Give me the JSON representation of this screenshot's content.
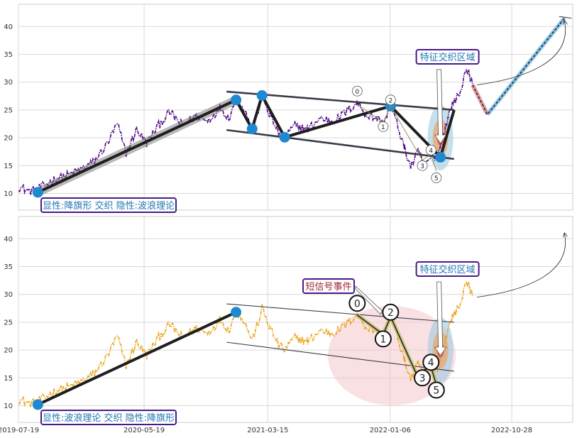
{
  "chart_data": [
    {
      "type": "line",
      "xlim": [
        "2019-07-19",
        "2023-03-25"
      ],
      "ylim": [
        7,
        44
      ],
      "y_ticks": [
        10,
        15,
        20,
        25,
        30,
        35,
        40
      ],
      "grid": true,
      "price_color": "#4b0082",
      "series": [
        {
          "values": [
            [
              "2019-07-19",
              11.2
            ],
            [
              "2019-08-15",
              10.4
            ],
            [
              "2019-09-10",
              11.0
            ],
            [
              "2019-10-15",
              12.6
            ],
            [
              "2019-11-20",
              13.4
            ],
            [
              "2019-12-20",
              14.4
            ],
            [
              "2020-01-20",
              15.8
            ],
            [
              "2020-02-20",
              19.0
            ],
            [
              "2020-03-15",
              22.5
            ],
            [
              "2020-04-05",
              17.2
            ],
            [
              "2020-05-01",
              21.5
            ],
            [
              "2020-05-25",
              19.0
            ],
            [
              "2020-06-20",
              22.0
            ],
            [
              "2020-07-20",
              24.6
            ],
            [
              "2020-08-20",
              22.2
            ],
            [
              "2020-09-20",
              24.0
            ],
            [
              "2020-10-20",
              23.0
            ],
            [
              "2020-11-20",
              25.5
            ],
            [
              "2020-12-10",
              23.5
            ],
            [
              "2020-12-28",
              27.0
            ],
            [
              "2021-01-15",
              25.5
            ],
            [
              "2021-02-05",
              21.8
            ],
            [
              "2021-02-20",
              25.0
            ],
            [
              "2021-03-01",
              27.5
            ],
            [
              "2021-03-20",
              24.0
            ],
            [
              "2021-04-10",
              21.0
            ],
            [
              "2021-04-25",
              20.0
            ],
            [
              "2021-05-20",
              22.3
            ],
            [
              "2021-06-20",
              21.5
            ],
            [
              "2021-07-20",
              23.5
            ],
            [
              "2021-08-20",
              23.0
            ],
            [
              "2021-09-20",
              24.5
            ],
            [
              "2021-10-18",
              26.4
            ],
            [
              "2021-11-10",
              24.0
            ],
            [
              "2021-12-05",
              23.5
            ],
            [
              "2021-12-20",
              22.5
            ],
            [
              "2022-01-07",
              25.7
            ],
            [
              "2022-01-25",
              22.0
            ],
            [
              "2022-02-10",
              18.0
            ],
            [
              "2022-02-25",
              14.8
            ],
            [
              "2022-03-15",
              17.5
            ],
            [
              "2022-04-01",
              15.0
            ],
            [
              "2022-04-15",
              16.5
            ],
            [
              "2022-05-01",
              16.8
            ],
            [
              "2022-05-20",
              22.0
            ],
            [
              "2022-06-05",
              26.0
            ],
            [
              "2022-06-25",
              28.0
            ],
            [
              "2022-07-10",
              32.8
            ],
            [
              "2022-07-25",
              29.5
            ]
          ]
        }
      ],
      "channel": {
        "upper": [
          [
            "2020-12-05",
            28.3
          ],
          [
            "2022-06-10",
            25.0
          ]
        ],
        "lower": [
          [
            "2020-12-05",
            21.4
          ],
          [
            "2022-06-10",
            16.2
          ]
        ]
      },
      "pattern_path": [
        [
          "2019-09-04",
          10.2
        ],
        [
          "2020-12-28",
          26.8
        ],
        [
          "2021-02-05",
          21.6
        ],
        [
          "2021-03-01",
          27.6
        ],
        [
          "2021-04-25",
          20.1
        ],
        [
          "2022-01-07",
          25.7
        ],
        [
          "2022-05-08",
          16.5
        ],
        [
          "2022-06-10",
          25.0
        ]
      ],
      "wave_points": [
        {
          "label": "0",
          "date": "2021-10-18",
          "value": 28.4
        },
        {
          "label": "1",
          "date": "2021-12-20",
          "value": 22.0
        },
        {
          "label": "2",
          "date": "2022-01-07",
          "value": 26.8
        },
        {
          "label": "3",
          "date": "2022-03-25",
          "value": 15.0
        },
        {
          "label": "4",
          "date": "2022-04-15",
          "value": 17.8
        },
        {
          "label": "5",
          "date": "2022-04-28",
          "value": 12.8
        }
      ],
      "forecast": {
        "path": [
          [
            "2022-07-25",
            29.5
          ],
          [
            "2022-08-30",
            24.2
          ],
          [
            "2023-03-05",
            41.5
          ]
        ],
        "tbar": [
          [
            "2023-02-20",
            41.8
          ],
          [
            "2023-03-22",
            41.5
          ]
        ]
      },
      "feature_region": {
        "date": "2022-05-08",
        "value": 20.0
      },
      "annotation_arrow": {
        "from": [
          "2022-07-25",
          29.5
        ],
        "to": [
          "2023-03-05",
          41.0
        ]
      },
      "label_feature": "特征交织区域",
      "label_bottom": "显性:降旗形 交织 隐性:波浪理论"
    },
    {
      "type": "line",
      "xlim": [
        "2019-07-19",
        "2023-03-25"
      ],
      "ylim": [
        7,
        44
      ],
      "y_ticks": [
        10,
        15,
        20,
        25,
        30,
        35,
        40
      ],
      "x_ticks": [
        "2019-07-19",
        "2020-05-19",
        "2021-03-15",
        "2022-01-06",
        "2022-10-28"
      ],
      "grid": true,
      "price_color": "#e8a317",
      "series": [
        {
          "values": [
            [
              "2019-07-19",
              11.2
            ],
            [
              "2019-08-15",
              10.4
            ],
            [
              "2019-09-10",
              11.0
            ],
            [
              "2019-10-15",
              12.6
            ],
            [
              "2019-11-20",
              13.4
            ],
            [
              "2019-12-20",
              14.4
            ],
            [
              "2020-01-20",
              15.8
            ],
            [
              "2020-02-20",
              19.0
            ],
            [
              "2020-03-15",
              22.5
            ],
            [
              "2020-04-05",
              17.2
            ],
            [
              "2020-05-01",
              21.5
            ],
            [
              "2020-05-25",
              19.0
            ],
            [
              "2020-06-20",
              22.0
            ],
            [
              "2020-07-20",
              24.6
            ],
            [
              "2020-08-20",
              22.2
            ],
            [
              "2020-09-20",
              24.0
            ],
            [
              "2020-10-20",
              23.0
            ],
            [
              "2020-11-20",
              25.5
            ],
            [
              "2020-12-10",
              23.5
            ],
            [
              "2020-12-28",
              27.0
            ],
            [
              "2021-01-15",
              25.5
            ],
            [
              "2021-02-05",
              21.8
            ],
            [
              "2021-02-20",
              25.0
            ],
            [
              "2021-03-01",
              27.5
            ],
            [
              "2021-03-20",
              24.0
            ],
            [
              "2021-04-10",
              21.0
            ],
            [
              "2021-04-25",
              20.0
            ],
            [
              "2021-05-20",
              22.3
            ],
            [
              "2021-06-20",
              21.5
            ],
            [
              "2021-07-20",
              23.5
            ],
            [
              "2021-08-20",
              23.0
            ],
            [
              "2021-09-20",
              24.5
            ],
            [
              "2021-10-18",
              26.4
            ],
            [
              "2021-11-10",
              24.0
            ],
            [
              "2021-12-05",
              23.5
            ],
            [
              "2021-12-20",
              22.5
            ],
            [
              "2022-01-07",
              25.7
            ],
            [
              "2022-01-25",
              22.0
            ],
            [
              "2022-02-10",
              18.0
            ],
            [
              "2022-02-25",
              14.8
            ],
            [
              "2022-03-15",
              17.5
            ],
            [
              "2022-04-01",
              15.0
            ],
            [
              "2022-04-15",
              16.5
            ],
            [
              "2022-05-01",
              16.8
            ],
            [
              "2022-05-20",
              22.0
            ],
            [
              "2022-06-05",
              26.0
            ],
            [
              "2022-06-25",
              28.0
            ],
            [
              "2022-07-10",
              32.8
            ],
            [
              "2022-07-25",
              29.5
            ]
          ]
        }
      ],
      "channel": {
        "upper": [
          [
            "2020-12-05",
            28.3
          ],
          [
            "2022-06-10",
            25.0
          ]
        ],
        "lower": [
          [
            "2020-12-05",
            21.4
          ],
          [
            "2022-06-10",
            16.2
          ]
        ]
      },
      "pattern_path": [
        [
          "2019-09-04",
          10.2
        ],
        [
          "2020-12-28",
          26.8
        ]
      ],
      "wave_path": [
        [
          "2021-10-18",
          26.3
        ],
        [
          "2021-12-20",
          22.8
        ],
        [
          "2022-01-07",
          26.0
        ],
        [
          "2022-03-10",
          15.8
        ],
        [
          "2022-04-15",
          17.0
        ],
        [
          "2022-04-28",
          13.8
        ]
      ],
      "wave_points": [
        {
          "label": "0",
          "date": "2021-10-18",
          "value": 28.4
        },
        {
          "label": "1",
          "date": "2021-12-20",
          "value": 22.0
        },
        {
          "label": "2",
          "date": "2022-01-07",
          "value": 26.8
        },
        {
          "label": "3",
          "date": "2022-03-25",
          "value": 15.0
        },
        {
          "label": "4",
          "date": "2022-04-15",
          "value": 17.8
        },
        {
          "label": "5",
          "date": "2022-04-28",
          "value": 12.8
        }
      ],
      "short_signal_region": {
        "date": "2022-01-10",
        "value": 19.0
      },
      "feature_region": {
        "date": "2022-05-08",
        "value": 20.0
      },
      "annotation_arrow": {
        "from": [
          "2022-07-25",
          29.5
        ],
        "to": [
          "2023-03-05",
          41.0
        ]
      },
      "label_short_signal": "短信号事件",
      "label_feature": "特征交织区域",
      "label_bottom": "显性:波浪理论 交织 隐性:降旗形"
    }
  ]
}
